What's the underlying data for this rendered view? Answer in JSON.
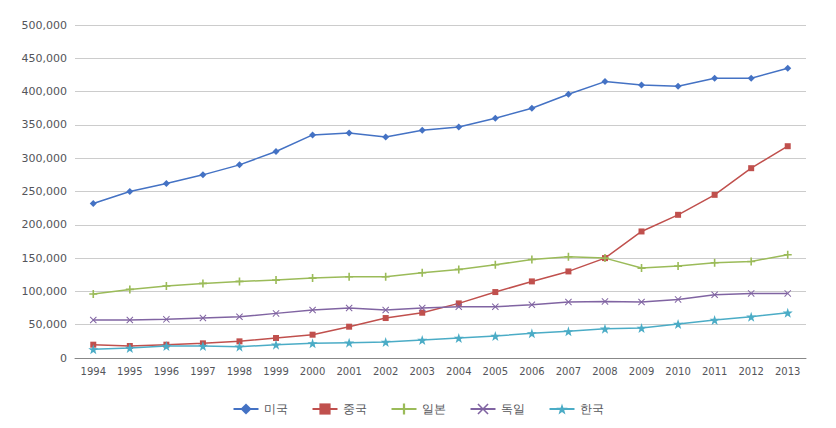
{
  "chart_data": {
    "type": "line",
    "x": [
      1994,
      1995,
      1996,
      1997,
      1998,
      1999,
      2000,
      2001,
      2002,
      2003,
      2004,
      2005,
      2006,
      2007,
      2008,
      2009,
      2010,
      2011,
      2012,
      2013
    ],
    "xlim": [
      1993.5,
      2013.5
    ],
    "xticks": [
      1994,
      1995,
      1996,
      1997,
      1998,
      1999,
      2000,
      2001,
      2002,
      2003,
      2004,
      2005,
      2006,
      2007,
      2008,
      2009,
      2010,
      2011,
      2012,
      2013
    ],
    "ylim": [
      0,
      500000
    ],
    "yticks": [
      0,
      {
        "value": 50000,
        "label": "50,000"
      },
      {
        "value": 100000,
        "label": "100,000"
      },
      {
        "value": 150000,
        "label": "150,000"
      },
      {
        "value": 200000,
        "label": "200,000"
      },
      {
        "value": 250000,
        "label": "250,000"
      },
      {
        "value": 300000,
        "label": "300,000"
      },
      {
        "value": 350000,
        "label": "350,000"
      },
      {
        "value": 400000,
        "label": "400,000"
      },
      {
        "value": 450000,
        "label": "450,000"
      },
      {
        "value": 500000,
        "label": "500,000"
      }
    ],
    "grid": true,
    "legend": "bottom",
    "series": [
      {
        "name": "미국",
        "color": "#4472C4",
        "marker": "diamond",
        "values": [
          232000,
          250000,
          262000,
          275000,
          290000,
          310000,
          335000,
          338000,
          332000,
          342000,
          347000,
          360000,
          375000,
          396000,
          415000,
          410000,
          408000,
          420000,
          420000,
          435000
        ]
      },
      {
        "name": "중국",
        "color": "#C0504D",
        "marker": "square",
        "values": [
          20000,
          18000,
          20000,
          22000,
          25000,
          30000,
          35000,
          47000,
          60000,
          68000,
          82000,
          99000,
          115000,
          130000,
          150000,
          190000,
          215000,
          245000,
          285000,
          318000
        ]
      },
      {
        "name": "일본",
        "color": "#9BBB59",
        "marker": "plus",
        "values": [
          96000,
          103000,
          108000,
          112000,
          115000,
          117000,
          120000,
          122000,
          122000,
          128000,
          133000,
          140000,
          148000,
          152000,
          150000,
          135000,
          138000,
          143000,
          145000,
          155000
        ]
      },
      {
        "name": "독일",
        "color": "#8064A2",
        "marker": "x",
        "values": [
          57000,
          57000,
          58000,
          60000,
          62000,
          67000,
          72000,
          75000,
          72000,
          75000,
          77000,
          77000,
          80000,
          84000,
          85000,
          84000,
          88000,
          95000,
          97000,
          97000
        ]
      },
      {
        "name": "한국",
        "color": "#4BACC6",
        "marker": "star",
        "values": [
          13000,
          15000,
          18000,
          18000,
          17000,
          20000,
          22000,
          23000,
          24000,
          27000,
          30000,
          33000,
          37000,
          40000,
          44000,
          45000,
          51000,
          57000,
          62000,
          68000
        ]
      }
    ]
  }
}
